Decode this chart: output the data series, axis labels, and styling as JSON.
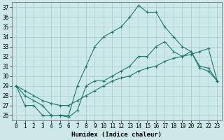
{
  "xlabel": "Humidex (Indice chaleur)",
  "background_color": "#cce8e8",
  "grid_color": "#aacccc",
  "line_color": "#1a7a6e",
  "xlim": [
    -0.5,
    23.5
  ],
  "ylim": [
    25.5,
    37.5
  ],
  "xticks": [
    0,
    1,
    2,
    3,
    4,
    5,
    6,
    7,
    8,
    9,
    10,
    11,
    12,
    13,
    14,
    15,
    16,
    17,
    18,
    19,
    20,
    21,
    22,
    23
  ],
  "yticks": [
    26,
    27,
    28,
    29,
    30,
    31,
    32,
    33,
    34,
    35,
    36,
    37
  ],
  "series": [
    [
      29,
      27,
      27,
      26,
      26,
      26,
      26,
      29,
      31,
      33,
      34,
      34.5,
      35,
      36,
      37.2,
      36.5,
      36.5,
      35,
      34,
      33,
      32.5,
      30.8,
      30.5,
      29.5
    ],
    [
      29,
      28,
      27.5,
      27,
      26,
      26,
      25.8,
      26.5,
      29,
      29.5,
      29.5,
      30,
      30.5,
      31,
      32,
      32,
      33,
      33.5,
      32.5,
      32,
      32.5,
      31,
      30.8,
      29.5
    ],
    [
      29,
      28.5,
      28,
      27.5,
      27.2,
      27,
      27,
      27.5,
      28,
      28.5,
      29,
      29.5,
      29.8,
      30,
      30.5,
      30.8,
      31,
      31.5,
      31.8,
      32,
      32.2,
      32.5,
      32.8,
      29.5
    ]
  ],
  "xlabel_fontsize": 6.5,
  "tick_fontsize": 5.5
}
